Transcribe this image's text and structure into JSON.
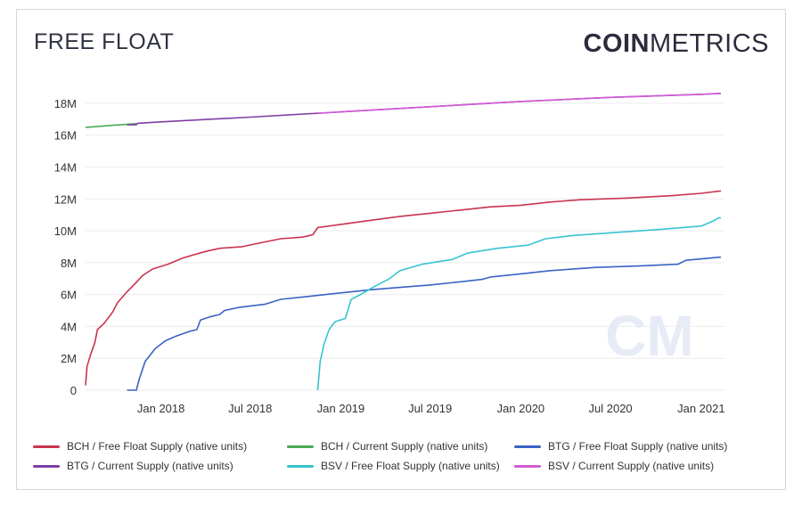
{
  "header": {
    "title": "FREE FLOAT",
    "brand_bold": "COIN",
    "brand_light": "METRICS"
  },
  "watermark": "CM",
  "chart_data": {
    "type": "line",
    "xlabel": "",
    "ylabel": "",
    "ylim": [
      0,
      18000000
    ],
    "xlim": [
      "2017-08-01",
      "2021-02-10"
    ],
    "y_ticks": [
      0,
      2000000,
      4000000,
      6000000,
      8000000,
      10000000,
      12000000,
      14000000,
      16000000,
      18000000
    ],
    "y_tick_labels": [
      "0",
      "2M",
      "4M",
      "6M",
      "8M",
      "10M",
      "12M",
      "14M",
      "16M",
      "18M"
    ],
    "x_ticks": [
      "2018-01-01",
      "2018-07-01",
      "2019-01-01",
      "2019-07-01",
      "2020-01-01",
      "2020-07-01",
      "2021-01-01"
    ],
    "x_tick_labels": [
      "Jan 2018",
      "Jul 2018",
      "Jan 2019",
      "Jul 2019",
      "Jan 2020",
      "Jul 2020",
      "Jan 2021"
    ],
    "grid": "horizontal",
    "legend_position": "bottom",
    "series": [
      {
        "name": "BCH / Free Float Supply (native units)",
        "color": "#c9334f",
        "points": [
          [
            "2017-08-01",
            300000
          ],
          [
            "2017-08-04",
            1500000
          ],
          [
            "2017-08-12",
            2300000
          ],
          [
            "2017-08-20",
            3000000
          ],
          [
            "2017-08-25",
            3800000
          ],
          [
            "2017-09-08",
            4200000
          ],
          [
            "2017-09-25",
            4900000
          ],
          [
            "2017-10-05",
            5500000
          ],
          [
            "2017-10-25",
            6200000
          ],
          [
            "2017-11-10",
            6700000
          ],
          [
            "2017-11-25",
            7200000
          ],
          [
            "2017-12-15",
            7600000
          ],
          [
            "2018-01-15",
            7900000
          ],
          [
            "2018-02-15",
            8300000
          ],
          [
            "2018-04-01",
            8700000
          ],
          [
            "2018-05-01",
            8900000
          ],
          [
            "2018-06-15",
            9000000
          ],
          [
            "2018-07-15",
            9200000
          ],
          [
            "2018-09-01",
            9500000
          ],
          [
            "2018-10-15",
            9600000
          ],
          [
            "2018-11-05",
            9750000
          ],
          [
            "2018-11-15",
            10200000
          ],
          [
            "2019-01-01",
            10400000
          ],
          [
            "2019-03-01",
            10650000
          ],
          [
            "2019-05-01",
            10900000
          ],
          [
            "2019-07-01",
            11100000
          ],
          [
            "2019-09-01",
            11300000
          ],
          [
            "2019-11-01",
            11500000
          ],
          [
            "2020-01-01",
            11600000
          ],
          [
            "2020-03-01",
            11800000
          ],
          [
            "2020-05-01",
            11950000
          ],
          [
            "2020-08-01",
            12050000
          ],
          [
            "2020-11-01",
            12200000
          ],
          [
            "2021-01-01",
            12350000
          ],
          [
            "2021-02-10",
            12500000
          ]
        ]
      },
      {
        "name": "BCH / Current Supply (native units)",
        "color": "#4caa56",
        "points": [
          [
            "2017-08-01",
            16480000
          ],
          [
            "2017-09-01",
            16560000
          ],
          [
            "2017-10-01",
            16630000
          ],
          [
            "2017-11-12",
            16720000
          ]
        ]
      },
      {
        "name": "BTG / Free Float Supply (native units)",
        "color": "#3a62c4",
        "points": [
          [
            "2017-10-24",
            0
          ],
          [
            "2017-11-12",
            0
          ],
          [
            "2017-11-18",
            700000
          ],
          [
            "2017-11-30",
            1800000
          ],
          [
            "2017-12-20",
            2600000
          ],
          [
            "2018-01-10",
            3100000
          ],
          [
            "2018-02-01",
            3400000
          ],
          [
            "2018-03-01",
            3700000
          ],
          [
            "2018-03-15",
            3800000
          ],
          [
            "2018-03-22",
            4400000
          ],
          [
            "2018-04-10",
            4600000
          ],
          [
            "2018-04-30",
            4750000
          ],
          [
            "2018-05-10",
            5000000
          ],
          [
            "2018-06-10",
            5200000
          ],
          [
            "2018-08-01",
            5400000
          ],
          [
            "2018-09-01",
            5700000
          ],
          [
            "2018-11-01",
            5900000
          ],
          [
            "2019-01-01",
            6100000
          ],
          [
            "2019-03-01",
            6300000
          ],
          [
            "2019-05-01",
            6450000
          ],
          [
            "2019-07-01",
            6600000
          ],
          [
            "2019-09-01",
            6800000
          ],
          [
            "2019-10-15",
            6950000
          ],
          [
            "2019-11-01",
            7100000
          ],
          [
            "2020-01-01",
            7300000
          ],
          [
            "2020-03-01",
            7500000
          ],
          [
            "2020-06-01",
            7700000
          ],
          [
            "2020-09-01",
            7800000
          ],
          [
            "2020-11-15",
            7900000
          ],
          [
            "2020-12-01",
            8150000
          ],
          [
            "2021-02-10",
            8350000
          ]
        ]
      },
      {
        "name": "BTG / Current Supply (native units)",
        "color": "#7f3da6",
        "points": [
          [
            "2017-10-24",
            16650000
          ],
          [
            "2017-11-12",
            16650000
          ],
          [
            "2017-11-14",
            16740000
          ],
          [
            "2018-01-01",
            16830000
          ],
          [
            "2018-07-01",
            17130000
          ],
          [
            "2019-01-01",
            17460000
          ],
          [
            "2019-07-01",
            17780000
          ],
          [
            "2020-01-01",
            18110000
          ],
          [
            "2020-07-01",
            18370000
          ],
          [
            "2021-01-01",
            18560000
          ],
          [
            "2021-02-10",
            18620000
          ]
        ]
      },
      {
        "name": "BSV / Free Float Supply (native units)",
        "color": "#38c4d0",
        "points": [
          [
            "2018-11-15",
            0
          ],
          [
            "2018-11-20",
            1800000
          ],
          [
            "2018-11-28",
            2900000
          ],
          [
            "2018-12-08",
            3800000
          ],
          [
            "2018-12-20",
            4300000
          ],
          [
            "2019-01-10",
            4500000
          ],
          [
            "2019-01-22",
            5700000
          ],
          [
            "2019-02-10",
            6000000
          ],
          [
            "2019-03-10",
            6500000
          ],
          [
            "2019-04-10",
            7000000
          ],
          [
            "2019-05-01",
            7500000
          ],
          [
            "2019-06-15",
            7900000
          ],
          [
            "2019-08-15",
            8200000
          ],
          [
            "2019-09-15",
            8600000
          ],
          [
            "2019-11-15",
            8900000
          ],
          [
            "2020-01-15",
            9100000
          ],
          [
            "2020-02-20",
            9500000
          ],
          [
            "2020-04-15",
            9700000
          ],
          [
            "2020-07-15",
            9900000
          ],
          [
            "2020-10-15",
            10100000
          ],
          [
            "2021-01-01",
            10300000
          ],
          [
            "2021-01-25",
            10600000
          ],
          [
            "2021-02-05",
            10800000
          ],
          [
            "2021-02-10",
            10820000
          ]
        ]
      },
      {
        "name": "BSV / Current Supply (native units)",
        "color": "#d45ad6",
        "points": [
          [
            "2018-11-15",
            17370000
          ],
          [
            "2019-01-01",
            17460000
          ],
          [
            "2019-07-01",
            17780000
          ],
          [
            "2020-01-01",
            18110000
          ],
          [
            "2020-07-01",
            18370000
          ],
          [
            "2021-01-01",
            18560000
          ],
          [
            "2021-02-10",
            18620000
          ]
        ]
      }
    ]
  }
}
